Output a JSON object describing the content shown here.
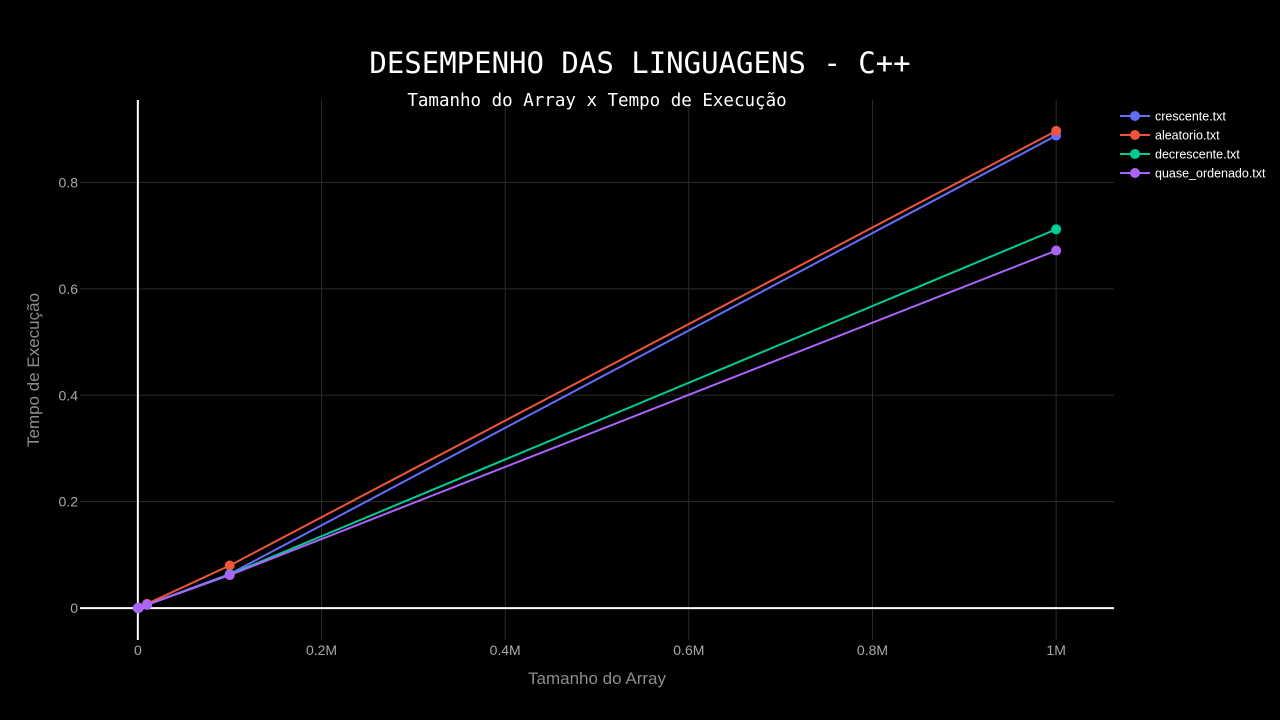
{
  "chart_data": {
    "type": "line",
    "title": "DESEMPENHO DAS LINGUAGENS - C++",
    "subtitle": "Tamanho do Array x Tempo de Execução",
    "xlabel": "Tamanho do Array",
    "ylabel": "Tempo de Execução",
    "xlim": [
      -63000,
      1063000
    ],
    "ylim": [
      -0.06,
      0.955
    ],
    "xticks": [
      {
        "value": 0,
        "label": "0"
      },
      {
        "value": 200000,
        "label": "0.2M"
      },
      {
        "value": 400000,
        "label": "0.4M"
      },
      {
        "value": 600000,
        "label": "0.6M"
      },
      {
        "value": 800000,
        "label": "0.8M"
      },
      {
        "value": 1000000,
        "label": "1M"
      }
    ],
    "yticks": [
      {
        "value": 0,
        "label": "0"
      },
      {
        "value": 0.2,
        "label": "0.2"
      },
      {
        "value": 0.4,
        "label": "0.4"
      },
      {
        "value": 0.6,
        "label": "0.6"
      },
      {
        "value": 0.8,
        "label": "0.8"
      }
    ],
    "grid": true,
    "legend_position": "top-right",
    "x": [
      100,
      1000,
      10000,
      100000,
      1000000
    ],
    "series": [
      {
        "name": "crescente.txt",
        "color": "#636efa",
        "values": [
          0.0,
          0.0006,
          0.0065,
          0.064,
          0.888
        ]
      },
      {
        "name": "aleatorio.txt",
        "color": "#ef553b",
        "values": [
          0.0,
          0.0008,
          0.008,
          0.08,
          0.897
        ]
      },
      {
        "name": "decrescente.txt",
        "color": "#00cc96",
        "values": [
          0.0,
          0.0006,
          0.0062,
          0.063,
          0.712
        ]
      },
      {
        "name": "quase_ordenado.txt",
        "color": "#ab63fa",
        "values": [
          0.0,
          0.0006,
          0.0062,
          0.062,
          0.672
        ]
      }
    ]
  }
}
